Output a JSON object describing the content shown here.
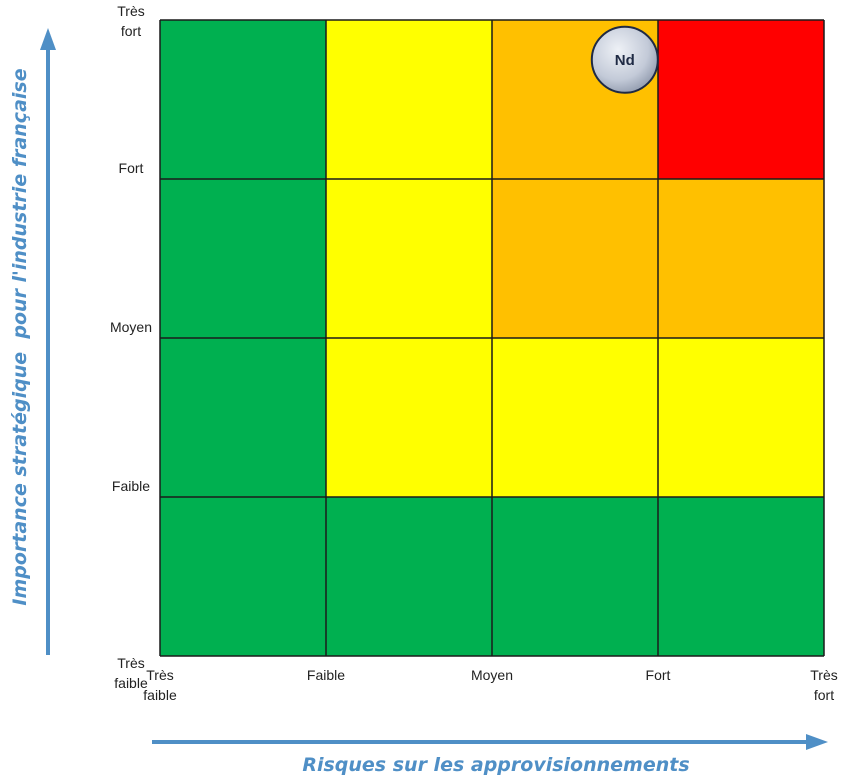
{
  "chart_data": {
    "type": "heatmap",
    "xlabel": "Risques sur les approvisionnements",
    "ylabel": "Importance stratégique  pour l'industrie française",
    "x_ticks": [
      [
        "Très",
        "faible"
      ],
      [
        "Faible"
      ],
      [
        "Moyen"
      ],
      [
        "Fort"
      ],
      [
        "Très",
        "fort"
      ]
    ],
    "y_ticks": [
      [
        "Très",
        "faible"
      ],
      [
        "Faible"
      ],
      [
        "Moyen"
      ],
      [
        "Fort"
      ],
      [
        "Très",
        "fort"
      ]
    ],
    "colors": {
      "green": "#00b050",
      "yellow": "#ffff00",
      "orange": "#ffc000",
      "red": "#ff0000",
      "axis": "#4f8fc6"
    },
    "grid_rows_top_to_bottom": [
      [
        "green",
        "yellow",
        "orange",
        "red"
      ],
      [
        "green",
        "yellow",
        "orange",
        "orange"
      ],
      [
        "green",
        "yellow",
        "yellow",
        "yellow"
      ],
      [
        "green",
        "green",
        "green",
        "green"
      ]
    ],
    "markers": [
      {
        "label": "Nd",
        "x": 2.8,
        "y": 3.75
      }
    ]
  }
}
